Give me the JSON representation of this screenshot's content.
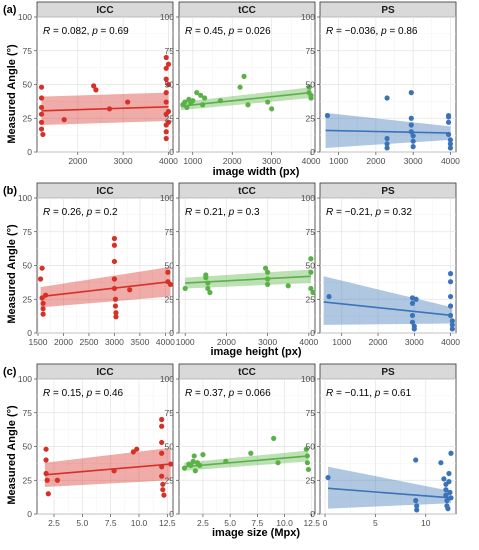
{
  "figure": {
    "ylabel": "Measured Angle (°)",
    "yticks": [
      0,
      25,
      50,
      75,
      100
    ],
    "ylim": [
      0,
      100
    ],
    "facets": [
      "ICC",
      "tCC",
      "PS"
    ]
  },
  "chart_data": [
    {
      "type": "scatter",
      "tag": "(a)",
      "xlabel": "image width (px)",
      "panels": [
        {
          "facet": "ICC",
          "color": "#d73027",
          "stat": {
            "R": "0.082",
            "p": "0.69"
          },
          "xlim": [
            1100,
            4100
          ],
          "xticks": [
            2000,
            3000,
            4000
          ],
          "fit": {
            "x": [
              1200,
              4000
            ],
            "y": [
              30.5,
              33.5
            ],
            "lower": [
              20,
              23
            ],
            "upper": [
              41,
              44
            ]
          },
          "points": [
            [
              1200,
              48
            ],
            [
              1200,
              40
            ],
            [
              1200,
              33
            ],
            [
              1200,
              28
            ],
            [
              1200,
              22
            ],
            [
              1200,
              17
            ],
            [
              1230,
              13
            ],
            [
              1700,
              24
            ],
            [
              2350,
              49
            ],
            [
              2400,
              46
            ],
            [
              2700,
              32
            ],
            [
              3100,
              37
            ],
            [
              3950,
              70
            ],
            [
              3950,
              62
            ],
            [
              3950,
              54
            ],
            [
              3950,
              44
            ],
            [
              3950,
              37
            ],
            [
              3950,
              28
            ],
            [
              3950,
              20
            ],
            [
              3950,
              15
            ],
            [
              3950,
              10
            ],
            [
              4000,
              65
            ],
            [
              4000,
              50
            ],
            [
              4000,
              30
            ],
            [
              4000,
              22
            ]
          ]
        },
        {
          "facet": "tCC",
          "color": "#5ab147",
          "stat": {
            "R": "0.45",
            "p": "0.026"
          },
          "xlim": [
            650,
            4100
          ],
          "xticks": [
            1000,
            2000,
            3000,
            4000
          ],
          "fit": {
            "x": [
              700,
              4000
            ],
            "y": [
              34,
              44
            ],
            "lower": [
              31,
              40
            ],
            "upper": [
              37,
              48
            ]
          },
          "points": [
            [
              750,
              35
            ],
            [
              800,
              37
            ],
            [
              850,
              33
            ],
            [
              900,
              39
            ],
            [
              950,
              36
            ],
            [
              1000,
              38
            ],
            [
              1100,
              44
            ],
            [
              1200,
              42
            ],
            [
              1250,
              35
            ],
            [
              1300,
              40
            ],
            [
              1700,
              38
            ],
            [
              2200,
              48
            ],
            [
              2300,
              56
            ],
            [
              2400,
              35
            ],
            [
              2900,
              37
            ],
            [
              3000,
              32
            ],
            [
              3950,
              48
            ],
            [
              3950,
              44
            ],
            [
              4000,
              42
            ],
            [
              4000,
              40
            ]
          ]
        },
        {
          "facet": "PS",
          "color": "#3a73b7",
          "stat": {
            "R": "−0.036",
            "p": "0.86"
          },
          "xlim": [
            500,
            4150
          ],
          "xticks": [
            1000,
            2000,
            3000,
            4000
          ],
          "fit": {
            "x": [
              650,
              4000
            ],
            "y": [
              16,
              14
            ],
            "lower": [
              3,
              9
            ],
            "upper": [
              29,
              19
            ]
          },
          "points": [
            [
              700,
              27
            ],
            [
              2300,
              40
            ],
            [
              2300,
              10
            ],
            [
              2300,
              6
            ],
            [
              2300,
              3
            ],
            [
              2950,
              44
            ],
            [
              2950,
              25
            ],
            [
              2950,
              20
            ],
            [
              2950,
              15
            ],
            [
              3000,
              12
            ],
            [
              3000,
              8
            ],
            [
              3000,
              4
            ],
            [
              3950,
              27
            ],
            [
              3950,
              26
            ],
            [
              3950,
              22
            ],
            [
              3950,
              13
            ],
            [
              4000,
              9
            ],
            [
              4000,
              6
            ],
            [
              4000,
              3
            ]
          ]
        }
      ]
    },
    {
      "type": "scatter",
      "tag": "(b)",
      "xlabel": "image height (px)",
      "panels": [
        {
          "facet": "ICC",
          "color": "#d73027",
          "stat": {
            "R": "0.26",
            "p": "0.2"
          },
          "xlim": [
            1480,
            4150
          ],
          "xticks": [
            1500,
            2000,
            2500,
            3000,
            3500,
            4000
          ],
          "fit": {
            "x": [
              1550,
              4100
            ],
            "y": [
              27,
              38
            ],
            "lower": [
              19,
              27
            ],
            "upper": [
              34,
              49
            ]
          },
          "points": [
            [
              1550,
              40
            ],
            [
              1580,
              48
            ],
            [
              1580,
              26
            ],
            [
              1600,
              22
            ],
            [
              1600,
              18
            ],
            [
              1600,
              14
            ],
            [
              1650,
              28
            ],
            [
              3000,
              70
            ],
            [
              3000,
              65
            ],
            [
              3000,
              53
            ],
            [
              3000,
              40
            ],
            [
              3000,
              33
            ],
            [
              3020,
              25
            ],
            [
              3020,
              20
            ],
            [
              3030,
              15
            ],
            [
              3030,
              12
            ],
            [
              3300,
              32
            ],
            [
              4050,
              45
            ],
            [
              4050,
              38
            ],
            [
              4100,
              36
            ]
          ]
        },
        {
          "facet": "tCC",
          "color": "#5ab147",
          "stat": {
            "R": "0.21",
            "p": "0.3"
          },
          "xlim": [
            850,
            4150
          ],
          "xticks": [
            1000,
            2000,
            3000,
            4000
          ],
          "fit": {
            "x": [
              1000,
              4050
            ],
            "y": [
              37,
              42
            ],
            "lower": [
              33,
              37
            ],
            "upper": [
              41,
              47
            ]
          },
          "points": [
            [
              1000,
              33
            ],
            [
              1500,
              43
            ],
            [
              1500,
              41
            ],
            [
              1550,
              37
            ],
            [
              1550,
              33
            ],
            [
              1600,
              30
            ],
            [
              2950,
              48
            ],
            [
              3000,
              45
            ],
            [
              3000,
              40
            ],
            [
              3000,
              36
            ],
            [
              3500,
              35
            ],
            [
              4050,
              55
            ],
            [
              4050,
              45
            ],
            [
              4050,
              33
            ],
            [
              4100,
              30
            ]
          ]
        },
        {
          "facet": "PS",
          "color": "#3a73b7",
          "stat": {
            "R": "−0.21",
            "p": "0.32"
          },
          "xlim": [
            400,
            4150
          ],
          "xticks": [
            1000,
            2000,
            3000,
            4000
          ],
          "fit": {
            "x": [
              500,
              4050
            ],
            "y": [
              23,
              13
            ],
            "lower": [
              6,
              7
            ],
            "upper": [
              42,
              19
            ]
          },
          "points": [
            [
              650,
              27
            ],
            [
              2950,
              26
            ],
            [
              2950,
              22
            ],
            [
              2950,
              13
            ],
            [
              2950,
              8
            ],
            [
              3000,
              5
            ],
            [
              3000,
              3
            ],
            [
              3050,
              25
            ],
            [
              4000,
              44
            ],
            [
              4000,
              38
            ],
            [
              4000,
              27
            ],
            [
              4000,
              20
            ],
            [
              4000,
              13
            ],
            [
              4050,
              9
            ],
            [
              4050,
              6
            ],
            [
              4050,
              3
            ]
          ]
        }
      ]
    },
    {
      "type": "scatter",
      "tag": "(c)",
      "xlabel": "image size (Mpx)",
      "panels": [
        {
          "facet": "ICC",
          "color": "#d73027",
          "stat": {
            "R": "0.15",
            "p": "0.46"
          },
          "xlim": [
            1,
            13
          ],
          "xticks": [
            2.5,
            5.0,
            7.5,
            10.0,
            12.5
          ],
          "fit": {
            "x": [
              1.7,
              12.8
            ],
            "y": [
              29,
              37
            ],
            "lower": [
              20,
              25
            ],
            "upper": [
              38,
              49
            ]
          },
          "points": [
            [
              1.8,
              48
            ],
            [
              1.8,
              40
            ],
            [
              1.8,
              30
            ],
            [
              1.9,
              25
            ],
            [
              2.0,
              15
            ],
            [
              2.8,
              25
            ],
            [
              7.8,
              32
            ],
            [
              9.5,
              46
            ],
            [
              9.8,
              48
            ],
            [
              12.0,
              70
            ],
            [
              12.0,
              65
            ],
            [
              12.0,
              53
            ],
            [
              12.0,
              45
            ],
            [
              12.0,
              35
            ],
            [
              12.0,
              28
            ],
            [
              12.1,
              22
            ],
            [
              12.1,
              18
            ],
            [
              12.2,
              14
            ],
            [
              12.8,
              37
            ]
          ]
        },
        {
          "facet": "tCC",
          "color": "#5ab147",
          "stat": {
            "R": "0.37",
            "p": "0.066"
          },
          "xlim": [
            0.3,
            12.8
          ],
          "xticks": [
            2.5,
            5.0,
            7.5,
            10.0,
            12.5
          ],
          "fit": {
            "x": [
              0.8,
              12.2
            ],
            "y": [
              35,
              43
            ],
            "lower": [
              32,
              39
            ],
            "upper": [
              38,
              47
            ]
          },
          "points": [
            [
              0.8,
              34
            ],
            [
              1.2,
              37
            ],
            [
              1.4,
              36
            ],
            [
              1.6,
              39
            ],
            [
              1.7,
              43
            ],
            [
              1.8,
              32
            ],
            [
              2.0,
              38
            ],
            [
              2.2,
              36
            ],
            [
              2.5,
              44
            ],
            [
              4.6,
              39
            ],
            [
              6.9,
              45
            ],
            [
              9.0,
              56
            ],
            [
              9.4,
              38
            ],
            [
              12.0,
              48
            ],
            [
              12.1,
              43
            ],
            [
              12.1,
              38
            ],
            [
              12.2,
              33
            ]
          ]
        },
        {
          "facet": "PS",
          "color": "#3a73b7",
          "stat": {
            "R": "−0.11",
            "p": "0.61"
          },
          "xlim": [
            -0.5,
            13
          ],
          "xticks": [
            0,
            5,
            10
          ],
          "fit": {
            "x": [
              0.3,
              12.5
            ],
            "y": [
              19,
              12
            ],
            "lower": [
              4,
              8
            ],
            "upper": [
              35,
              17
            ]
          },
          "points": [
            [
              0.3,
              27
            ],
            [
              9.0,
              40
            ],
            [
              9.0,
              10
            ],
            [
              9.1,
              6
            ],
            [
              9.1,
              3
            ],
            [
              11.5,
              38
            ],
            [
              11.8,
              26
            ],
            [
              12.0,
              22
            ],
            [
              12.0,
              18
            ],
            [
              12.0,
              14
            ],
            [
              12.1,
              10
            ],
            [
              12.1,
              6
            ],
            [
              12.2,
              4
            ],
            [
              12.3,
              30
            ],
            [
              12.3,
              24
            ],
            [
              12.4,
              16
            ],
            [
              12.5,
              12
            ],
            [
              12.5,
              45
            ]
          ]
        }
      ]
    }
  ]
}
